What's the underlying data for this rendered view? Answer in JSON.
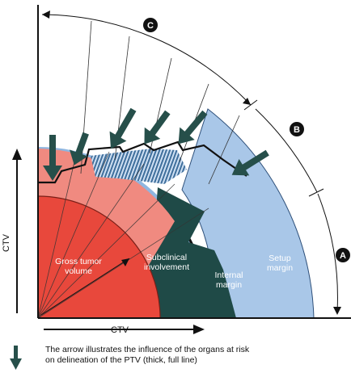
{
  "regions": {
    "gtv": [
      "Gross tumor",
      "volume"
    ],
    "subclinical": [
      "Subclinical",
      "involvement"
    ],
    "internal": [
      "Internal",
      "margin"
    ],
    "setup": [
      "Setup",
      "margin"
    ]
  },
  "axes": {
    "x": "CTV",
    "y": "CTV"
  },
  "badges": {
    "a": "A",
    "b": "B",
    "c": "C"
  },
  "legend": {
    "line1": "The arrow illustrates the influence of the organs at risk",
    "line2": "on delineation of the PTV (thick, full line)"
  },
  "colors": {
    "gtv": "#e8483c",
    "subclinical": "#f08a80",
    "internal": "#1f4a47",
    "setup": "#8fb6e0",
    "arrow": "#264f4a"
  }
}
